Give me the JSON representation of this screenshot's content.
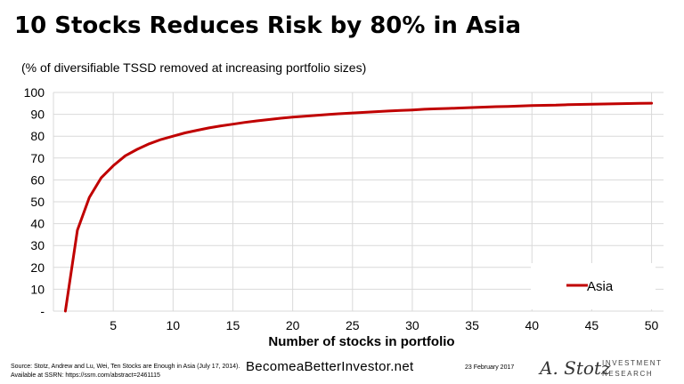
{
  "header": {
    "title": "10 Stocks Reduces Risk by 80% in Asia",
    "subtitle": "(% of diversifiable TSSD removed at increasing portfolio sizes)"
  },
  "chart_data": {
    "type": "line",
    "xlabel": "Number of stocks in portfolio",
    "xlim": [
      0,
      51
    ],
    "ylim": [
      0,
      100
    ],
    "x_ticks": [
      "5",
      "10",
      "15",
      "20",
      "25",
      "30",
      "35",
      "40",
      "45",
      "50"
    ],
    "y_ticks": [
      "-",
      "10",
      "20",
      "30",
      "40",
      "50",
      "60",
      "70",
      "80",
      "90",
      "100"
    ],
    "grid": true,
    "legend": "bottom-right",
    "series": [
      {
        "name": "Asia",
        "color": "#c00000",
        "x": [
          1,
          2,
          3,
          4,
          5,
          6,
          7,
          8,
          9,
          10,
          11,
          12,
          13,
          14,
          15,
          16,
          17,
          18,
          19,
          20,
          21,
          22,
          23,
          24,
          25,
          26,
          27,
          28,
          29,
          30,
          31,
          32,
          33,
          34,
          35,
          36,
          37,
          38,
          39,
          40,
          41,
          42,
          43,
          44,
          45,
          46,
          47,
          48,
          49,
          50
        ],
        "y": [
          0,
          37,
          52,
          61,
          66.5,
          71,
          74,
          76.5,
          78.5,
          80,
          81.5,
          82.7,
          83.8,
          84.7,
          85.5,
          86.3,
          87,
          87.6,
          88.2,
          88.7,
          89.1,
          89.5,
          89.9,
          90.3,
          90.6,
          90.9,
          91.2,
          91.5,
          91.8,
          92,
          92.3,
          92.5,
          92.7,
          92.9,
          93.1,
          93.3,
          93.5,
          93.6,
          93.8,
          94,
          94.1,
          94.2,
          94.4,
          94.5,
          94.6,
          94.7,
          94.8,
          94.9,
          95,
          95.1
        ]
      }
    ]
  },
  "footer": {
    "source": "Source: Stotz, Andrew and Lu, Wei, Ten Stocks are Enough in Asia (July 17, 2014). Available at SSRN: https://ssrn.com/abstract=2461115",
    "site": "BecomeaBetterInvestor.net",
    "date": "23 February 2017",
    "logo_signature": "A. Stotz",
    "logo_line1": "INVESTMENT",
    "logo_line2": "RESEARCH"
  }
}
